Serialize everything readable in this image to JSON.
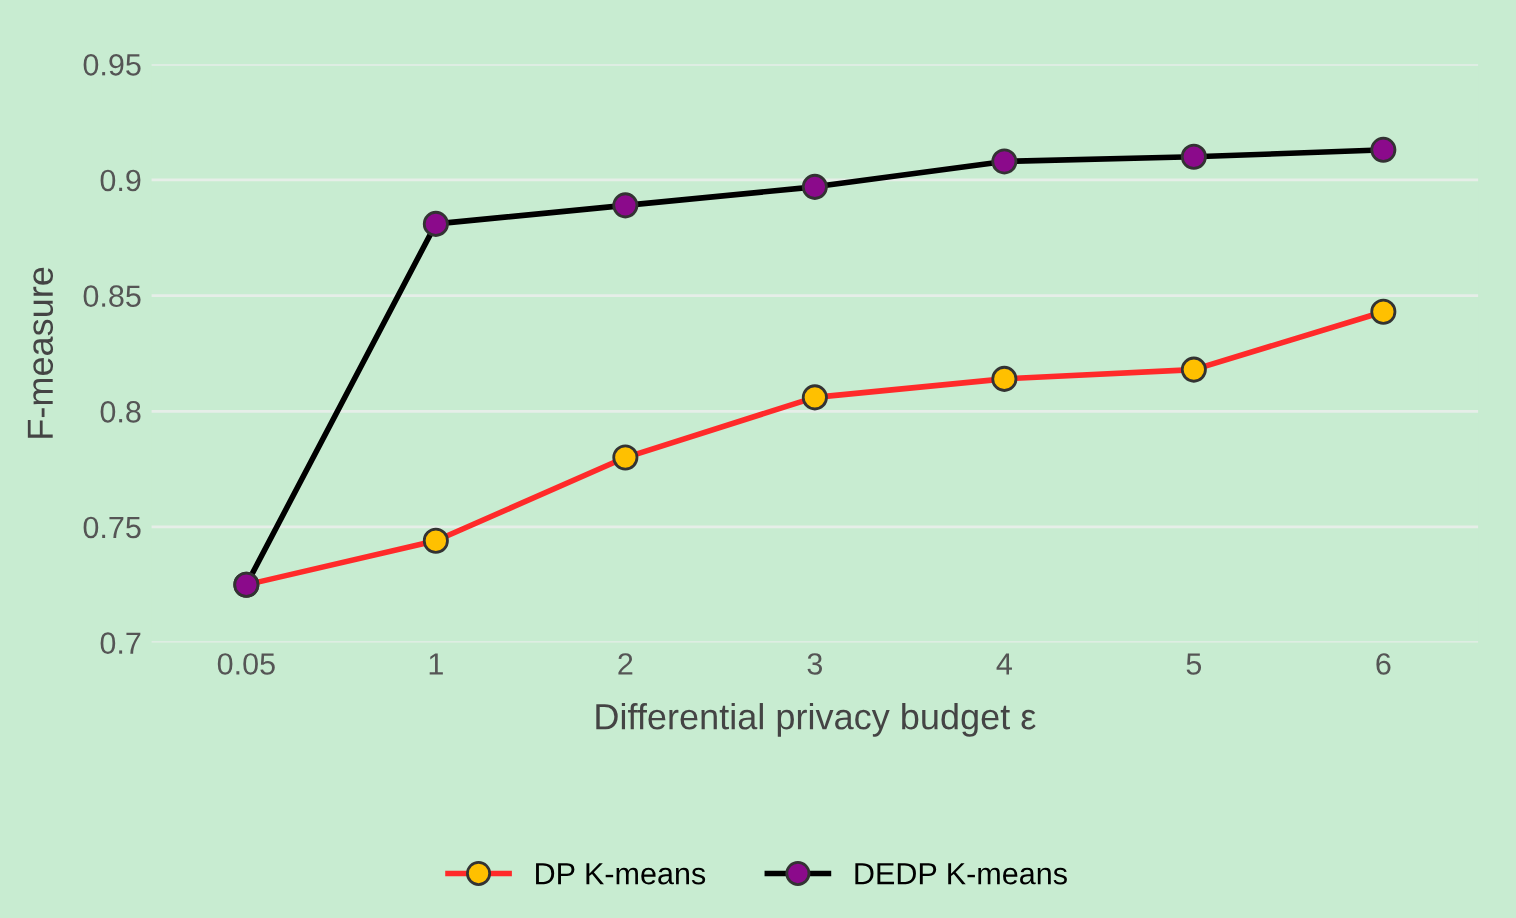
{
  "chart_data": {
    "type": "line",
    "xlabel": "Differential privacy budget ε",
    "ylabel": "F-measure",
    "categories": [
      "0.05",
      "1",
      "2",
      "3",
      "4",
      "5",
      "6"
    ],
    "series": [
      {
        "name": "DP K-means",
        "color": "#ff2a2a",
        "colors": [
          "#ffc000",
          "#ffc000",
          "#ffc000",
          "#ffc000",
          "#ffc000",
          "#ffc000",
          "#ffc000"
        ],
        "values": [
          0.725,
          0.744,
          0.78,
          0.806,
          0.814,
          0.818,
          0.843
        ]
      },
      {
        "name": "DEDP K-means",
        "color": "#000000",
        "colors": [
          "#8b0a8b",
          "#8b0a8b",
          "#8b0a8b",
          "#8b0a8b",
          "#8b0a8b",
          "#8b0a8b",
          "#8b0a8b"
        ],
        "values": [
          0.725,
          0.881,
          0.889,
          0.897,
          0.908,
          0.91,
          0.913
        ]
      }
    ],
    "ylim": [
      0.7,
      0.95
    ],
    "yticks": [
      0.7,
      0.75,
      0.8,
      0.85,
      0.9,
      0.95
    ],
    "grid": "y",
    "legend": "bottom",
    "marker": "circle",
    "line_style": "solid"
  }
}
